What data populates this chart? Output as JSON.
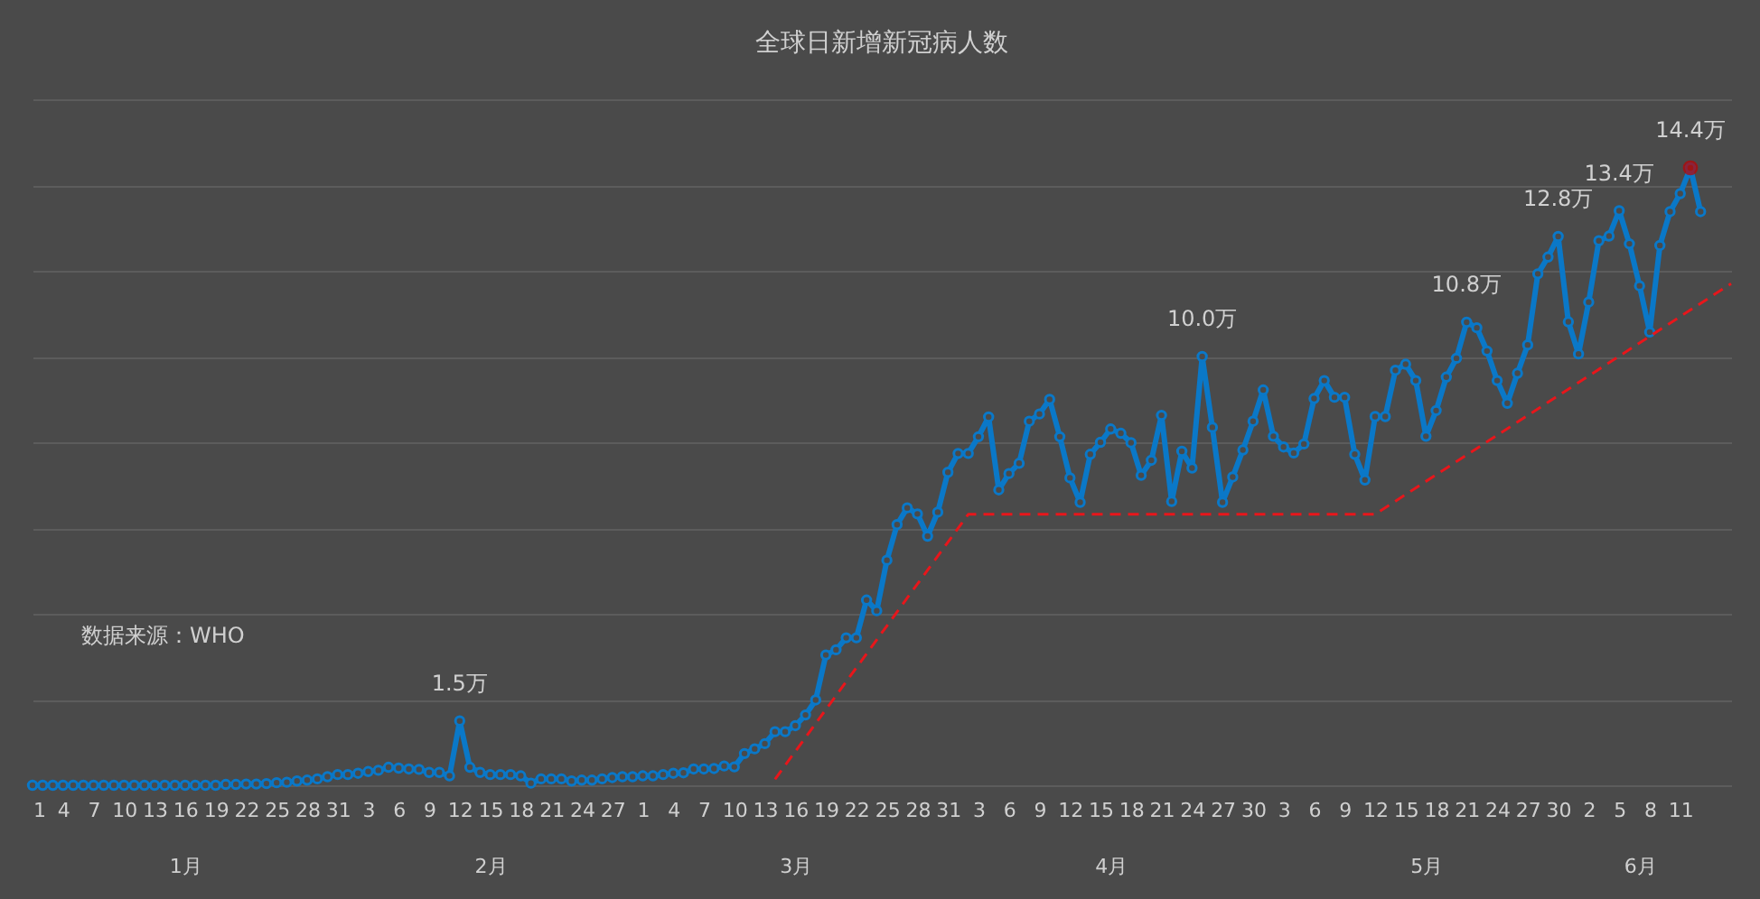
{
  "chart_data": {
    "type": "line",
    "title": "全球日新增新冠病人数",
    "x": [
      "--01-01",
      "--01-02",
      "--01-03",
      "--01-04",
      "--01-05",
      "--01-06",
      "--01-07",
      "--01-08",
      "--01-09",
      "--01-10",
      "--01-11",
      "--01-12",
      "--01-13",
      "--01-14",
      "--01-15",
      "--01-16",
      "--01-17",
      "--01-18",
      "--01-19",
      "--01-20",
      "--01-21",
      "--01-22",
      "--01-23",
      "--01-24",
      "--01-25",
      "--01-26",
      "--01-27",
      "--01-28",
      "--01-29",
      "--01-30",
      "--01-31",
      "--02-01",
      "--02-02",
      "--02-03",
      "--02-04",
      "--02-05",
      "--02-06",
      "--02-07",
      "--02-08",
      "--02-09",
      "--02-10",
      "--02-11",
      "--02-12",
      "--02-13",
      "--02-14",
      "--02-15",
      "--02-16",
      "--02-17",
      "--02-18",
      "--02-19",
      "--02-20",
      "--02-21",
      "--02-22",
      "--02-23",
      "--02-24",
      "--02-25",
      "--02-26",
      "--02-27",
      "--02-28",
      "--02-29",
      "--03-01",
      "--03-02",
      "--03-03",
      "--03-04",
      "--03-05",
      "--03-06",
      "--03-07",
      "--03-08",
      "--03-09",
      "--03-10",
      "--03-11",
      "--03-12",
      "--03-13",
      "--03-14",
      "--03-15",
      "--03-16",
      "--03-17",
      "--03-18",
      "--03-19",
      "--03-20",
      "--03-21",
      "--03-22",
      "--03-23",
      "--03-24",
      "--03-25",
      "--03-26",
      "--03-27",
      "--03-28",
      "--03-29",
      "--03-30",
      "--03-31",
      "--04-01",
      "--04-02",
      "--04-03",
      "--04-04",
      "--04-05",
      "--04-06",
      "--04-07",
      "--04-08",
      "--04-09",
      "--04-10",
      "--04-11",
      "--04-12",
      "--04-13",
      "--04-14",
      "--04-15",
      "--04-16",
      "--04-17",
      "--04-18",
      "--04-19",
      "--04-20",
      "--04-21",
      "--04-22",
      "--04-23",
      "--04-24",
      "--04-25",
      "--04-26",
      "--04-27",
      "--04-28",
      "--04-29",
      "--04-30",
      "--05-01",
      "--05-02",
      "--05-03",
      "--05-04",
      "--05-05",
      "--05-06",
      "--05-07",
      "--05-08",
      "--05-09",
      "--05-10",
      "--05-11",
      "--05-12",
      "--05-13",
      "--05-14",
      "--05-15",
      "--05-16",
      "--05-17",
      "--05-18",
      "--05-19",
      "--05-20",
      "--05-21",
      "--05-22",
      "--05-23",
      "--05-24",
      "--05-25",
      "--05-26",
      "--05-27",
      "--05-28",
      "--05-29",
      "--05-30",
      "--05-31",
      "--06-01",
      "--06-02",
      "--06-03",
      "--06-04",
      "--06-05",
      "--06-06",
      "--06-07",
      "--06-08",
      "--06-09",
      "--06-10",
      "--06-11",
      "--06-12",
      "--06-13"
    ],
    "series": [
      {
        "color": "#0a78c8",
        "marker": "circle",
        "value_labels": [
          null,
          null,
          null,
          null,
          null,
          null,
          null,
          null,
          null,
          null,
          null,
          null,
          null,
          null,
          null,
          null,
          null,
          null,
          null,
          null,
          null,
          null,
          null,
          null,
          null,
          null,
          null,
          null,
          null,
          null,
          null,
          null,
          null,
          null,
          null,
          null,
          null,
          null,
          null,
          null,
          null,
          null,
          "1.5万",
          null,
          null,
          null,
          null,
          null,
          null,
          null,
          null,
          null,
          null,
          null,
          null,
          null,
          null,
          null,
          null,
          null,
          null,
          null,
          null,
          null,
          null,
          null,
          null,
          null,
          null,
          null,
          null,
          null,
          null,
          null,
          null,
          null,
          null,
          null,
          null,
          null,
          null,
          null,
          null,
          null,
          null,
          null,
          null,
          null,
          null,
          null,
          null,
          null,
          null,
          null,
          null,
          null,
          null,
          null,
          null,
          null,
          null,
          null,
          null,
          null,
          null,
          null,
          null,
          null,
          null,
          null,
          null,
          null,
          null,
          null,
          null,
          "10.0万",
          null,
          null,
          null,
          null,
          null,
          null,
          null,
          null,
          null,
          null,
          null,
          null,
          null,
          null,
          null,
          null,
          null,
          null,
          null,
          null,
          null,
          null,
          null,
          null,
          null,
          "10.8万",
          null,
          null,
          null,
          null,
          null,
          null,
          null,
          null,
          "12.8万",
          null,
          null,
          null,
          null,
          null,
          "13.4万",
          null,
          null,
          null,
          null,
          null,
          null,
          "14.4万",
          null
        ],
        "values": [
          0,
          0,
          0,
          0,
          0,
          0,
          0,
          0,
          0,
          0,
          0,
          0,
          0,
          0,
          0,
          0,
          0,
          0,
          0,
          0.02,
          0.02,
          0.03,
          0.03,
          0.04,
          0.06,
          0.07,
          0.1,
          0.12,
          0.15,
          0.2,
          0.25,
          0.25,
          0.28,
          0.32,
          0.35,
          0.42,
          0.4,
          0.38,
          0.37,
          0.3,
          0.3,
          0.22,
          1.5,
          0.42,
          0.3,
          0.25,
          0.25,
          0.25,
          0.22,
          0.05,
          0.15,
          0.15,
          0.15,
          0.1,
          0.12,
          0.12,
          0.15,
          0.18,
          0.2,
          0.2,
          0.22,
          0.22,
          0.25,
          0.28,
          0.29,
          0.38,
          0.38,
          0.39,
          0.45,
          0.43,
          0.74,
          0.85,
          0.97,
          1.25,
          1.25,
          1.39,
          1.64,
          1.99,
          3.04,
          3.16,
          3.44,
          3.44,
          4.32,
          4.07,
          5.25,
          6.08,
          6.47,
          6.33,
          5.81,
          6.37,
          7.3,
          7.74,
          7.74,
          8.13,
          8.59,
          6.89,
          7.27,
          7.51,
          8.49,
          8.66,
          9.0,
          8.13,
          7.17,
          6.6,
          7.72,
          8.0,
          8.31,
          8.21,
          7.99,
          7.23,
          7.58,
          8.63,
          6.62,
          7.79,
          7.4,
          10.0,
          8.35,
          6.6,
          7.19,
          7.82,
          8.49,
          9.22,
          8.14,
          7.89,
          7.75,
          7.96,
          9.02,
          9.44,
          9.05,
          9.05,
          7.72,
          7.12,
          8.6,
          8.6,
          9.68,
          9.82,
          9.44,
          8.14,
          8.74,
          9.52,
          9.96,
          10.8,
          10.67,
          10.13,
          9.44,
          8.91,
          9.61,
          10.27,
          11.93,
          12.32,
          12.8,
          10.81,
          10.06,
          11.27,
          12.7,
          12.81,
          13.4,
          12.63,
          11.65,
          10.57,
          12.59,
          13.38,
          13.8,
          14.4,
          13.38
        ]
      },
      {
        "type": "line",
        "color": "#e8161b",
        "line_style": "dashed",
        "marker": "none",
        "x": [
          "--03-14",
          "--04-02",
          "--05-12",
          "--06-16"
        ],
        "values": [
          0.14,
          6.32,
          6.32,
          11.7
        ]
      },
      {
        "type": "scatter",
        "color": "#c00000",
        "x": [
          "--06-12"
        ],
        "values": [
          14.4
        ]
      }
    ],
    "annotations": [
      "数据来源：WHO"
    ],
    "xlim": [
      "--01-01",
      "--06-16"
    ],
    "xticks": [
      {
        "value": "--01-01",
        "label": "1"
      },
      {
        "value": "--01-04",
        "label": "4"
      },
      {
        "value": "--01-07",
        "label": "7"
      },
      {
        "value": "--01-10",
        "label": "10"
      },
      {
        "value": "--01-13",
        "label": "13"
      },
      {
        "value": "--01-16",
        "label": "16"
      },
      {
        "value": "--01-19",
        "label": "19"
      },
      {
        "value": "--01-22",
        "label": "22"
      },
      {
        "value": "--01-25",
        "label": "25"
      },
      {
        "value": "--01-28",
        "label": "28"
      },
      {
        "value": "--01-31",
        "label": "31"
      },
      {
        "value": "--02-03",
        "label": "3"
      },
      {
        "value": "--02-06",
        "label": "6"
      },
      {
        "value": "--02-09",
        "label": "9"
      },
      {
        "value": "--02-12",
        "label": "12"
      },
      {
        "value": "--02-15",
        "label": "15"
      },
      {
        "value": "--02-18",
        "label": "18"
      },
      {
        "value": "--02-21",
        "label": "21"
      },
      {
        "value": "--02-24",
        "label": "24"
      },
      {
        "value": "--02-27",
        "label": "27"
      },
      {
        "value": "--03-01",
        "label": "1"
      },
      {
        "value": "--03-04",
        "label": "4"
      },
      {
        "value": "--03-07",
        "label": "7"
      },
      {
        "value": "--03-10",
        "label": "10"
      },
      {
        "value": "--03-13",
        "label": "13"
      },
      {
        "value": "--03-16",
        "label": "16"
      },
      {
        "value": "--03-19",
        "label": "19"
      },
      {
        "value": "--03-22",
        "label": "22"
      },
      {
        "value": "--03-25",
        "label": "25"
      },
      {
        "value": "--03-28",
        "label": "28"
      },
      {
        "value": "--03-31",
        "label": "31"
      },
      {
        "value": "--04-03",
        "label": "3"
      },
      {
        "value": "--04-06",
        "label": "6"
      },
      {
        "value": "--04-09",
        "label": "9"
      },
      {
        "value": "--04-12",
        "label": "12"
      },
      {
        "value": "--04-15",
        "label": "15"
      },
      {
        "value": "--04-18",
        "label": "18"
      },
      {
        "value": "--04-21",
        "label": "21"
      },
      {
        "value": "--04-24",
        "label": "24"
      },
      {
        "value": "--04-27",
        "label": "27"
      },
      {
        "value": "--04-30",
        "label": "30"
      },
      {
        "value": "--05-03",
        "label": "3"
      },
      {
        "value": "--05-06",
        "label": "6"
      },
      {
        "value": "--05-09",
        "label": "9"
      },
      {
        "value": "--05-12",
        "label": "12"
      },
      {
        "value": "--05-15",
        "label": "15"
      },
      {
        "value": "--05-18",
        "label": "18"
      },
      {
        "value": "--05-21",
        "label": "21"
      },
      {
        "value": "--05-24",
        "label": "24"
      },
      {
        "value": "--05-27",
        "label": "27"
      },
      {
        "value": "--05-30",
        "label": "30"
      },
      {
        "value": "--06-02",
        "label": "2"
      },
      {
        "value": "--06-05",
        "label": "5"
      },
      {
        "value": "--06-08",
        "label": "8"
      },
      {
        "value": "--06-11",
        "label": "11"
      }
    ],
    "x2lim": [
      "--01-01",
      "--06-16"
    ],
    "x2ticks": [
      {
        "value": "--01-16",
        "label": "1月"
      },
      {
        "value": "--02-15",
        "label": "2月"
      },
      {
        "value": "--03-16",
        "label": "3月"
      },
      {
        "value": "--04-16",
        "label": "4月"
      },
      {
        "value": "--05-17",
        "label": "5月"
      },
      {
        "value": "--06-07",
        "label": "6月"
      }
    ],
    "ylim": [
      0,
      16
    ],
    "yticks": [
      {
        "value": 0,
        "label": null
      },
      {
        "value": 2,
        "label": null
      },
      {
        "value": 4,
        "label": null
      },
      {
        "value": 6,
        "label": null
      },
      {
        "value": 8,
        "label": null
      },
      {
        "value": 10,
        "label": null
      },
      {
        "value": 12,
        "label": null
      },
      {
        "value": 14,
        "label": null
      },
      {
        "value": 16,
        "label": null
      }
    ],
    "grid": "y",
    "tick_labels": "x"
  }
}
